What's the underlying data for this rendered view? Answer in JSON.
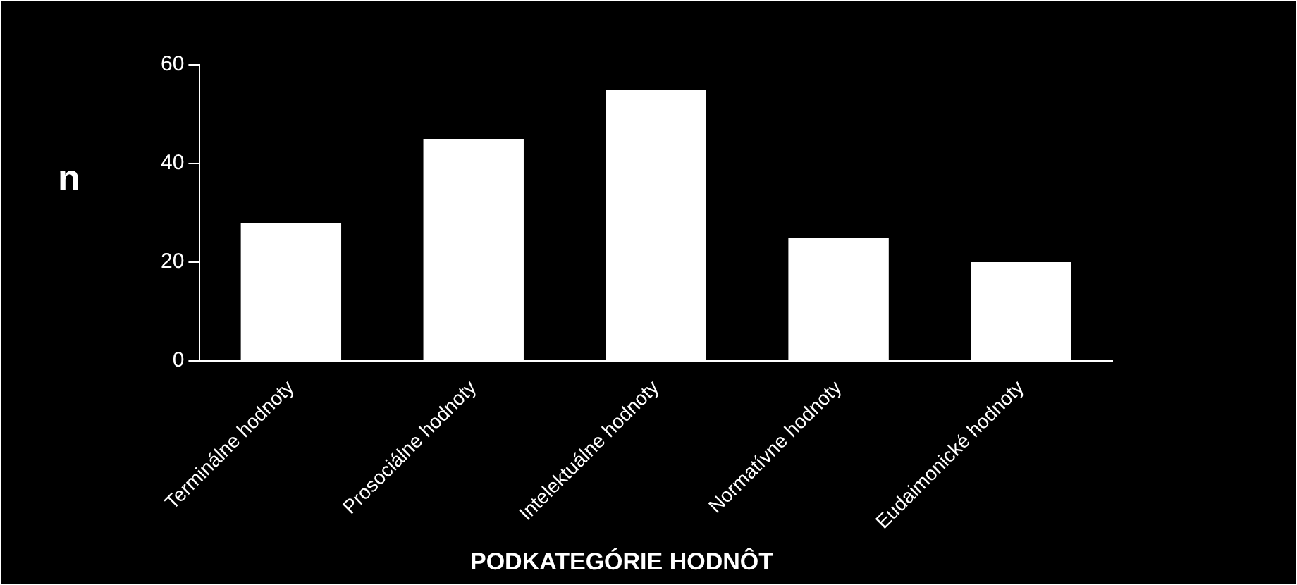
{
  "chart_data": {
    "type": "bar",
    "xlabel": "PODKATEGÓRIE HODNÔT",
    "ylabel": "n",
    "categories": [
      "Terminálne hodnoty",
      "Prosociálne hodnoty",
      "Intelektuálne hodnoty",
      "Normatívne hodnoty",
      "Eudaimonické hodnoty"
    ],
    "values": [
      28,
      45,
      55,
      25,
      20
    ],
    "color": "#ffffff",
    "ylim": [
      0,
      60
    ],
    "yticks": [
      0,
      20,
      40,
      60
    ],
    "grid": false,
    "legend": false
  }
}
